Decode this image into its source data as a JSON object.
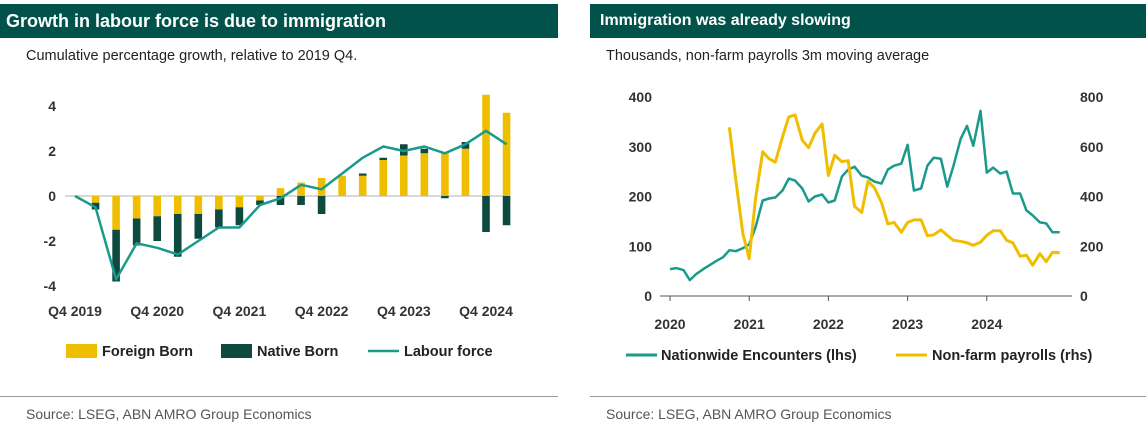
{
  "panels": {
    "left": {
      "title": "Growth in labour force is due to immigration",
      "subtitle": "Cumulative percentage growth, relative to 2019 Q4.",
      "source": "Source:  LSEG, ABN AMRO Group Economics"
    },
    "right": {
      "title": "Immigration was already slowing",
      "subtitle": "Thousands, non-farm payrolls 3m moving average",
      "source": "Source: LSEG, ABN AMRO Group Economics"
    }
  },
  "chart_data": [
    {
      "type": "bar",
      "stacked": true,
      "title": "Growth in labour force is due to immigration",
      "subtitle": "Cumulative percentage growth, relative to 2019 Q4.",
      "x_tick_labels": [
        "Q4 2019",
        "Q4 2020",
        "Q4 2021",
        "Q4 2022",
        "Q4 2023",
        "Q4 2024"
      ],
      "ylim": [
        -4,
        5
      ],
      "yticks": [
        4,
        2,
        0,
        -2,
        -4
      ],
      "grid": false,
      "legend_position": "bottom",
      "colors": {
        "foreign": "#f0be00",
        "native": "#0e4a40",
        "line": "#1a9a8a"
      },
      "series": [
        {
          "name": "Foreign Born",
          "kind": "bar",
          "values": [
            0,
            -0.3,
            -1.5,
            -1.0,
            -0.9,
            -0.8,
            -0.8,
            -0.6,
            -0.5,
            -0.2,
            0.35,
            0.6,
            0.8,
            0.9,
            0.9,
            1.6,
            1.8,
            1.9,
            1.9,
            2.1,
            4.5,
            3.7
          ]
        },
        {
          "name": "Native Born",
          "kind": "bar",
          "values": [
            0,
            -0.3,
            -2.3,
            -1.2,
            -1.1,
            -1.9,
            -1.1,
            -0.8,
            -0.8,
            -0.2,
            -0.4,
            -0.4,
            -0.8,
            0,
            0.1,
            0.1,
            0.5,
            0.2,
            -0.1,
            0.3,
            -1.6,
            -1.3
          ]
        },
        {
          "name": "Labour force",
          "kind": "line",
          "values": [
            0,
            -0.5,
            -3.7,
            -2.1,
            -2.3,
            -2.6,
            -2.0,
            -1.4,
            -1.4,
            -0.4,
            -0.1,
            0.5,
            0.3,
            1.0,
            1.7,
            2.2,
            2.0,
            2.2,
            1.9,
            2.3,
            2.9,
            2.3
          ]
        }
      ]
    },
    {
      "type": "line",
      "title": "Immigration was already slowing",
      "subtitle": "Thousands, non-farm payrolls 3m moving average",
      "x_tick_labels": [
        "2020",
        "2021",
        "2022",
        "2023",
        "2024"
      ],
      "xlim": [
        2020.0,
        2025.0
      ],
      "ylim_left": [
        0,
        400
      ],
      "ylim_right": [
        0,
        800
      ],
      "yticks_left": [
        0,
        100,
        200,
        300,
        400
      ],
      "yticks_right": [
        0,
        200,
        400,
        600,
        800
      ],
      "grid": false,
      "legend_position": "bottom",
      "colors": {
        "encounters": "#1a9a8a",
        "payrolls": "#f0be00"
      },
      "series": [
        {
          "name": "Nationwide Encounters (lhs)",
          "axis": "left",
          "points": [
            [
              2020.0,
              54
            ],
            [
              2020.08,
              56
            ],
            [
              2020.17,
              52
            ],
            [
              2020.25,
              32
            ],
            [
              2020.33,
              44
            ],
            [
              2020.42,
              54
            ],
            [
              2020.5,
              62
            ],
            [
              2020.58,
              70
            ],
            [
              2020.67,
              78
            ],
            [
              2020.75,
              92
            ],
            [
              2020.83,
              90
            ],
            [
              2020.92,
              96
            ],
            [
              2021.0,
              104
            ],
            [
              2021.08,
              138
            ],
            [
              2021.17,
              192
            ],
            [
              2021.25,
              196
            ],
            [
              2021.33,
              198
            ],
            [
              2021.42,
              212
            ],
            [
              2021.5,
              236
            ],
            [
              2021.58,
              232
            ],
            [
              2021.67,
              216
            ],
            [
              2021.75,
              190
            ],
            [
              2021.83,
              200
            ],
            [
              2021.92,
              204
            ],
            [
              2022.0,
              188
            ],
            [
              2022.08,
              192
            ],
            [
              2022.17,
              240
            ],
            [
              2022.25,
              254
            ],
            [
              2022.33,
              260
            ],
            [
              2022.42,
              242
            ],
            [
              2022.5,
              238
            ],
            [
              2022.58,
              230
            ],
            [
              2022.67,
              226
            ],
            [
              2022.75,
              254
            ],
            [
              2022.83,
              262
            ],
            [
              2022.92,
              266
            ],
            [
              2023.0,
              304
            ],
            [
              2023.08,
              212
            ],
            [
              2023.17,
              216
            ],
            [
              2023.25,
              262
            ],
            [
              2023.33,
              278
            ],
            [
              2023.42,
              276
            ],
            [
              2023.5,
              220
            ],
            [
              2023.58,
              262
            ],
            [
              2023.67,
              316
            ],
            [
              2023.75,
              342
            ],
            [
              2023.83,
              302
            ],
            [
              2023.92,
              372
            ],
            [
              2024.0,
              248
            ],
            [
              2024.08,
              258
            ],
            [
              2024.17,
              246
            ],
            [
              2024.25,
              250
            ],
            [
              2024.33,
              206
            ],
            [
              2024.42,
              206
            ],
            [
              2024.5,
              172
            ],
            [
              2024.58,
              162
            ],
            [
              2024.67,
              148
            ],
            [
              2024.75,
              146
            ],
            [
              2024.83,
              128
            ],
            [
              2024.92,
              128
            ]
          ]
        },
        {
          "name": "Non-farm payrolls (rhs)",
          "axis": "right",
          "points": [
            [
              2020.75,
              678
            ],
            [
              2020.83,
              470
            ],
            [
              2020.92,
              250
            ],
            [
              2021.0,
              150
            ],
            [
              2021.08,
              390
            ],
            [
              2021.17,
              580
            ],
            [
              2021.25,
              552
            ],
            [
              2021.33,
              538
            ],
            [
              2021.42,
              640
            ],
            [
              2021.5,
              720
            ],
            [
              2021.58,
              728
            ],
            [
              2021.67,
              626
            ],
            [
              2021.75,
              596
            ],
            [
              2021.83,
              654
            ],
            [
              2021.92,
              692
            ],
            [
              2022.0,
              484
            ],
            [
              2022.08,
              566
            ],
            [
              2022.17,
              540
            ],
            [
              2022.25,
              544
            ],
            [
              2022.33,
              360
            ],
            [
              2022.42,
              336
            ],
            [
              2022.5,
              462
            ],
            [
              2022.58,
              436
            ],
            [
              2022.67,
              376
            ],
            [
              2022.75,
              290
            ],
            [
              2022.83,
              296
            ],
            [
              2022.92,
              256
            ],
            [
              2023.0,
              296
            ],
            [
              2023.08,
              306
            ],
            [
              2023.17,
              306
            ],
            [
              2023.25,
              242
            ],
            [
              2023.33,
              246
            ],
            [
              2023.42,
              266
            ],
            [
              2023.5,
              244
            ],
            [
              2023.58,
              224
            ],
            [
              2023.67,
              220
            ],
            [
              2023.75,
              214
            ],
            [
              2023.83,
              204
            ],
            [
              2023.92,
              216
            ],
            [
              2024.0,
              244
            ],
            [
              2024.08,
              262
            ],
            [
              2024.17,
              262
            ],
            [
              2024.25,
              224
            ],
            [
              2024.33,
              214
            ],
            [
              2024.42,
              160
            ],
            [
              2024.5,
              164
            ],
            [
              2024.58,
              124
            ],
            [
              2024.67,
              170
            ],
            [
              2024.75,
              138
            ],
            [
              2024.83,
              176
            ],
            [
              2024.92,
              174
            ]
          ]
        }
      ]
    }
  ]
}
